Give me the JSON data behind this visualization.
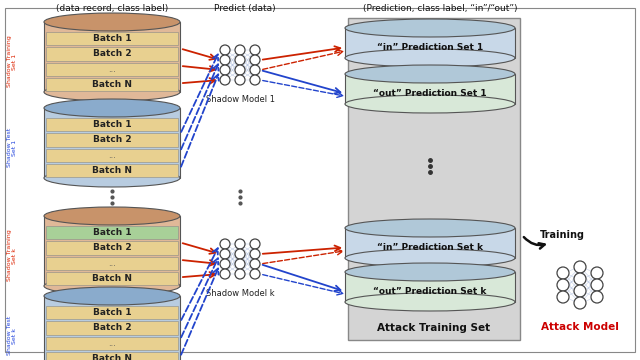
{
  "bg_color": "#ffffff",
  "header_data_record": "(data record, class label)",
  "header_predict": "Predict (data)",
  "header_prediction": "(Prediction, class label, “in”/“out”)",
  "label_shadow_train1": "Shadow Training\nSet 1",
  "label_shadow_test1": "Shadow Test\nSet 1",
  "label_shadow_traink": "Shadow Training\nSet k",
  "label_shadow_testk": "Shadow Test\nSet k",
  "label_shadow_model1": "Shadow Model 1",
  "label_shadow_modelk": "Shadow Model k",
  "label_in_pred1": "“in” Prediction Set 1",
  "label_out_pred1": "“out” Prediction Set 1",
  "label_in_predk": "“in” Prediction Set k",
  "label_out_predk": "“out” Prediction Set k",
  "label_attack_set": "Attack Training Set",
  "label_training": "Training",
  "label_attack_model": "Attack Model",
  "train_top_color": "#c8936a",
  "train_body_color": "#e0b898",
  "test_top_color": "#8aabcc",
  "test_body_color": "#b8cce0",
  "batch_stripe_color": "#e8d090",
  "batch_green_color": "#a8d098",
  "pred_body_color": "#c8d8e8",
  "pred_top_color": "#b0c8d8",
  "out_pred_body_color": "#d8e8d8",
  "attack_bg_color": "#d4d4d4",
  "red_color": "#cc2200",
  "blue_color": "#2244cc",
  "black_color": "#111111",
  "red_text_color": "#cc0000",
  "gray_text": "#333333",
  "side_label_red": "#dd2200",
  "side_label_blue": "#2244dd"
}
